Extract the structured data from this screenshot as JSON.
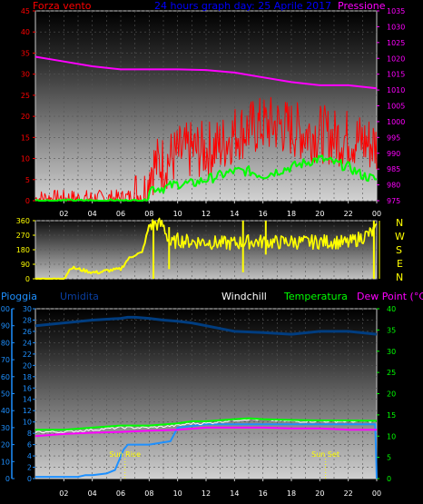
{
  "header": {
    "left_label": "Forza vento",
    "title": "24 hours graph day:  25 Aprile 2017",
    "right_label": "Pressione"
  },
  "bottom_header": {
    "pioggia": "Pioggia",
    "umidita": "Umidita",
    "windchill": "Windchill",
    "temperatura": "Temperatura",
    "dewpoint": "Dew Point (°C)"
  },
  "compass": [
    "N",
    "W",
    "S",
    "E",
    "N"
  ],
  "colors": {
    "wind": "#ff0000",
    "gust_green": "#00ff00",
    "pressure": "#ff00ff",
    "direction": "#ffff00",
    "humidity": "#003d80",
    "rain": "#1e90ff",
    "windchill": "#ffffff",
    "temperature": "#00ff00",
    "dewpoint": "#ff00ff",
    "sun_marker": "#ffff00"
  },
  "chart_data": [
    {
      "type": "line",
      "id": "wind_pressure",
      "x_ticks": [
        "02",
        "04",
        "06",
        "08",
        "10",
        "12",
        "14",
        "16",
        "18",
        "20",
        "22",
        "00"
      ],
      "left_axis": {
        "label": "Forza vento",
        "min": 0,
        "max": 45,
        "ticks": [
          0,
          5,
          10,
          15,
          20,
          25,
          30,
          35,
          40,
          45
        ]
      },
      "right_axis": {
        "label": "Pressione",
        "min": 975,
        "max": 1035,
        "ticks": [
          975,
          980,
          985,
          990,
          995,
          1000,
          1005,
          1010,
          1015,
          1020,
          1025,
          1030,
          1035
        ]
      },
      "series": [
        {
          "name": "Pressione",
          "axis": "right",
          "hours": [
            0,
            2,
            4,
            6,
            8,
            10,
            12,
            14,
            16,
            18,
            20,
            22,
            24
          ],
          "values": [
            1020.5,
            1019,
            1017.5,
            1016.5,
            1016.5,
            1016.5,
            1016.3,
            1015.5,
            1014,
            1012.5,
            1011.5,
            1011.5,
            1010.5
          ]
        },
        {
          "name": "Forza vento",
          "axis": "left",
          "hours": [
            0,
            2,
            4,
            6,
            7,
            7.9,
            8,
            9,
            10,
            11,
            12,
            13,
            14,
            15,
            16,
            17,
            18,
            19,
            20,
            21,
            22,
            23,
            24
          ],
          "values": [
            0.5,
            0.5,
            0.5,
            0.5,
            1,
            2,
            8,
            9,
            11,
            12,
            12,
            13,
            16,
            17,
            18,
            18,
            17,
            16,
            16,
            15,
            15,
            14,
            13
          ]
        },
        {
          "hours": [
            0,
            7.9,
            8,
            9,
            10,
            11,
            12,
            13,
            14,
            15,
            16,
            17,
            18,
            19,
            20,
            21,
            22,
            23,
            24
          ],
          "values": [
            0,
            0,
            3,
            3,
            4,
            4,
            5,
            6,
            7,
            7,
            6,
            7,
            8,
            9,
            10,
            9,
            8,
            6,
            5
          ],
          "axis": "left"
        }
      ]
    },
    {
      "type": "line",
      "id": "wind_direction",
      "x_ticks": [
        "02",
        "04",
        "06",
        "08",
        "10",
        "12",
        "14",
        "16",
        "18",
        "20",
        "22",
        "00"
      ],
      "y_axis": {
        "min": 0,
        "max": 360,
        "ticks": [
          0,
          90,
          180,
          270,
          360
        ]
      },
      "series": [
        {
          "hours": [
            0,
            2,
            2.5,
            3,
            3.5,
            4,
            4.5,
            5,
            6,
            6.5,
            7,
            7.5,
            8,
            8.5,
            9,
            9.5,
            10,
            11,
            12,
            13,
            14,
            15,
            16,
            17,
            18,
            19,
            20,
            21,
            22,
            23,
            24
          ],
          "values": [
            0,
            0,
            70,
            60,
            50,
            40,
            40,
            50,
            60,
            120,
            150,
            160,
            330,
            340,
            330,
            210,
            240,
            230,
            230,
            220,
            220,
            230,
            230,
            225,
            230,
            225,
            230,
            230,
            220,
            260,
            300
          ]
        }
      ]
    },
    {
      "type": "line",
      "id": "rain_humidity_temp",
      "x_ticks": [
        "02",
        "04",
        "06",
        "08",
        "10",
        "12",
        "14",
        "16",
        "18",
        "20",
        "22",
        "00"
      ],
      "left_axis_rain": {
        "label": "Pioggia",
        "min": 0,
        "max": 100,
        "ticks": [
          0,
          10,
          20,
          30,
          40,
          50,
          60,
          70,
          80,
          90,
          100
        ]
      },
      "left_axis_hum": {
        "label": "Umidita",
        "min": 0,
        "max": 30,
        "ticks": [
          0,
          2,
          4,
          6,
          8,
          10,
          12,
          14,
          16,
          18,
          20,
          22,
          24,
          26,
          28,
          30
        ]
      },
      "right_axis": {
        "label": "Dew Point (°C)",
        "min": 0,
        "max": 40,
        "ticks": [
          0,
          5,
          10,
          15,
          20,
          25,
          30,
          35,
          40
        ]
      },
      "annotations": [
        {
          "text": "Sun Rise",
          "hour": 6.3
        },
        {
          "text": "Sun Set",
          "hour": 20.4
        }
      ],
      "series": [
        {
          "name": "Umidita",
          "axis": "hum",
          "hours": [
            0,
            2,
            4,
            6,
            6.5,
            7,
            8,
            9,
            10,
            11,
            12,
            14,
            16,
            18,
            20,
            22,
            24
          ],
          "values": [
            27,
            27.5,
            28,
            28.3,
            28.5,
            28.5,
            28.3,
            28,
            27.8,
            27.5,
            27,
            26,
            25.8,
            25.5,
            26,
            26,
            25.5
          ]
        },
        {
          "name": "Pioggia",
          "axis": "rain",
          "hours": [
            0,
            3,
            3.5,
            4,
            5,
            5.6,
            6.2,
            6.5,
            8,
            9.5,
            10,
            11,
            12,
            13,
            16,
            20,
            23.9,
            24
          ],
          "values": [
            1,
            1,
            2,
            2,
            3,
            5,
            17,
            20,
            20,
            22,
            30,
            31,
            32,
            32,
            32,
            32,
            32,
            0
          ]
        },
        {
          "name": "Windchill",
          "axis": "right",
          "hours": [
            0,
            2,
            4,
            6,
            8,
            10,
            11,
            12,
            14,
            15,
            16,
            18,
            20,
            22,
            24
          ],
          "values": [
            11,
            11,
            11.5,
            12,
            12,
            12.5,
            13,
            13,
            13.8,
            14,
            13.8,
            13.5,
            13.5,
            13.5,
            13.5
          ]
        },
        {
          "name": "Temperatura",
          "axis": "right",
          "hours": [
            0,
            2,
            4,
            6,
            8,
            10,
            11,
            12,
            14,
            15,
            16,
            18,
            20,
            22,
            24
          ],
          "values": [
            11.5,
            11.5,
            12,
            12.5,
            12.5,
            13,
            13.5,
            13.5,
            14,
            14.2,
            14,
            13.8,
            13.7,
            13.7,
            13.6
          ]
        },
        {
          "name": "Dew Point (°C)",
          "axis": "right",
          "hours": [
            0,
            2,
            4,
            6,
            8,
            10,
            12,
            14,
            16,
            18,
            20,
            22,
            24
          ],
          "values": [
            10,
            10.5,
            10.8,
            11,
            11.3,
            11.5,
            12,
            12,
            12,
            11.8,
            11.8,
            11.5,
            11.5
          ]
        }
      ]
    }
  ]
}
